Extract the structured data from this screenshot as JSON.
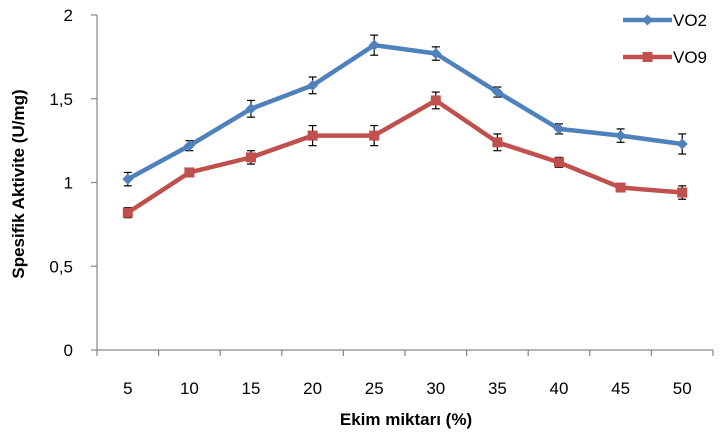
{
  "chart_data": {
    "type": "line",
    "title": "",
    "xlabel": "Ekim miktarı (%)",
    "ylabel": "Spesifik Aktivite (U/mg)",
    "categories": [
      "5",
      "10",
      "15",
      "20",
      "25",
      "30",
      "35",
      "40",
      "45",
      "50"
    ],
    "ylim": [
      0,
      2
    ],
    "yticks": [
      {
        "value": 0,
        "label": "0"
      },
      {
        "value": 0.5,
        "label": "0,5"
      },
      {
        "value": 1,
        "label": "1"
      },
      {
        "value": 1.5,
        "label": "1,5"
      },
      {
        "value": 2,
        "label": "2"
      }
    ],
    "grid": false,
    "legend_position": "top-right",
    "series": [
      {
        "name": "VO2",
        "color": "#4f81bd",
        "marker": "diamond",
        "values": [
          1.02,
          1.22,
          1.44,
          1.58,
          1.82,
          1.77,
          1.54,
          1.32,
          1.28,
          1.23
        ],
        "errors": [
          0.04,
          0.03,
          0.05,
          0.05,
          0.06,
          0.04,
          0.03,
          0.03,
          0.04,
          0.06
        ]
      },
      {
        "name": "VO9",
        "color": "#c0504d",
        "marker": "square",
        "values": [
          0.82,
          1.06,
          1.15,
          1.28,
          1.28,
          1.49,
          1.24,
          1.12,
          0.97,
          0.94
        ],
        "errors": [
          0.03,
          0.02,
          0.04,
          0.06,
          0.06,
          0.05,
          0.05,
          0.03,
          0.02,
          0.04
        ]
      }
    ]
  }
}
